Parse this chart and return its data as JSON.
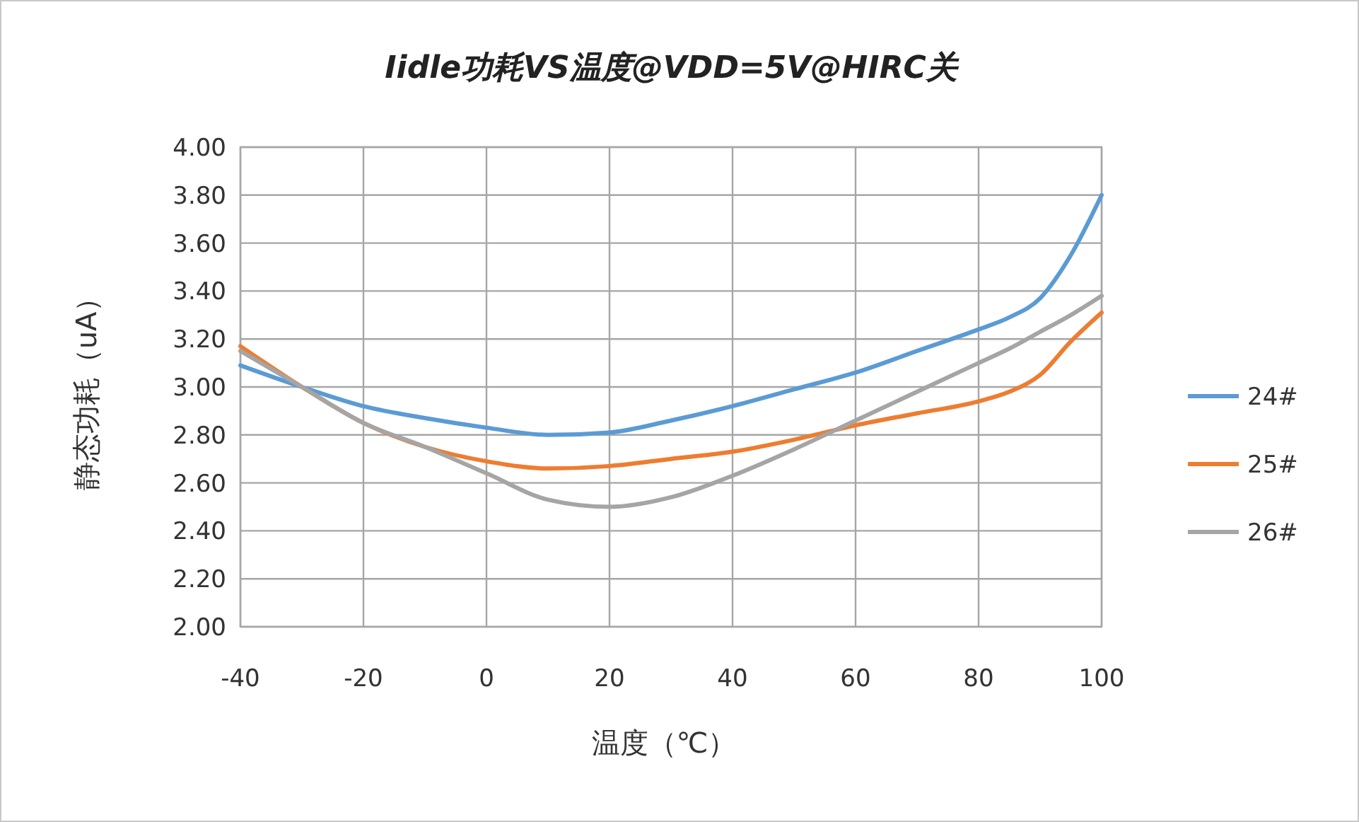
{
  "chart_data": {
    "type": "line",
    "title": "Iidle功耗VS温度@VDD=5V@HIRC关",
    "xlabel": "温度（℃）",
    "ylabel": "静态功耗（uA）",
    "x": [
      -40,
      -30,
      -20,
      -10,
      0,
      10,
      20,
      30,
      40,
      50,
      60,
      70,
      80,
      85,
      90,
      95,
      100
    ],
    "series": [
      {
        "name": "24#",
        "color": "#5b9bd5",
        "values": [
          3.09,
          3.0,
          2.92,
          2.87,
          2.83,
          2.8,
          2.81,
          2.86,
          2.92,
          2.99,
          3.06,
          3.15,
          3.24,
          3.29,
          3.37,
          3.55,
          3.8
        ]
      },
      {
        "name": "25#",
        "color": "#ed7d31",
        "values": [
          3.17,
          3.0,
          2.85,
          2.75,
          2.69,
          2.66,
          2.67,
          2.7,
          2.73,
          2.78,
          2.84,
          2.89,
          2.94,
          2.98,
          3.05,
          3.19,
          3.31
        ]
      },
      {
        "name": "26#",
        "color": "#a5a5a5",
        "values": [
          3.15,
          3.0,
          2.85,
          2.75,
          2.64,
          2.53,
          2.5,
          2.54,
          2.63,
          2.74,
          2.86,
          2.98,
          3.1,
          3.16,
          3.23,
          3.3,
          3.38
        ]
      }
    ],
    "xlim": [
      -40,
      100
    ],
    "xticks": [
      -40,
      -20,
      0,
      20,
      40,
      60,
      80,
      100
    ],
    "ylim": [
      2,
      4
    ],
    "yticks": [
      {
        "value": 2,
        "label": "2.00"
      },
      {
        "value": 2.2,
        "label": "2.20"
      },
      {
        "value": 2.4,
        "label": "2.40"
      },
      {
        "value": 2.6,
        "label": "2.60"
      },
      {
        "value": 2.8,
        "label": "2.80"
      },
      {
        "value": 3,
        "label": "3.00"
      },
      {
        "value": 3.2,
        "label": "3.20"
      },
      {
        "value": 3.4,
        "label": "3.40"
      },
      {
        "value": 3.6,
        "label": "3.60"
      },
      {
        "value": 3.8,
        "label": "3.80"
      },
      {
        "value": 4,
        "label": "4.00"
      }
    ],
    "grid": true,
    "legend": "right",
    "marker": "none",
    "line_style": "solid"
  }
}
